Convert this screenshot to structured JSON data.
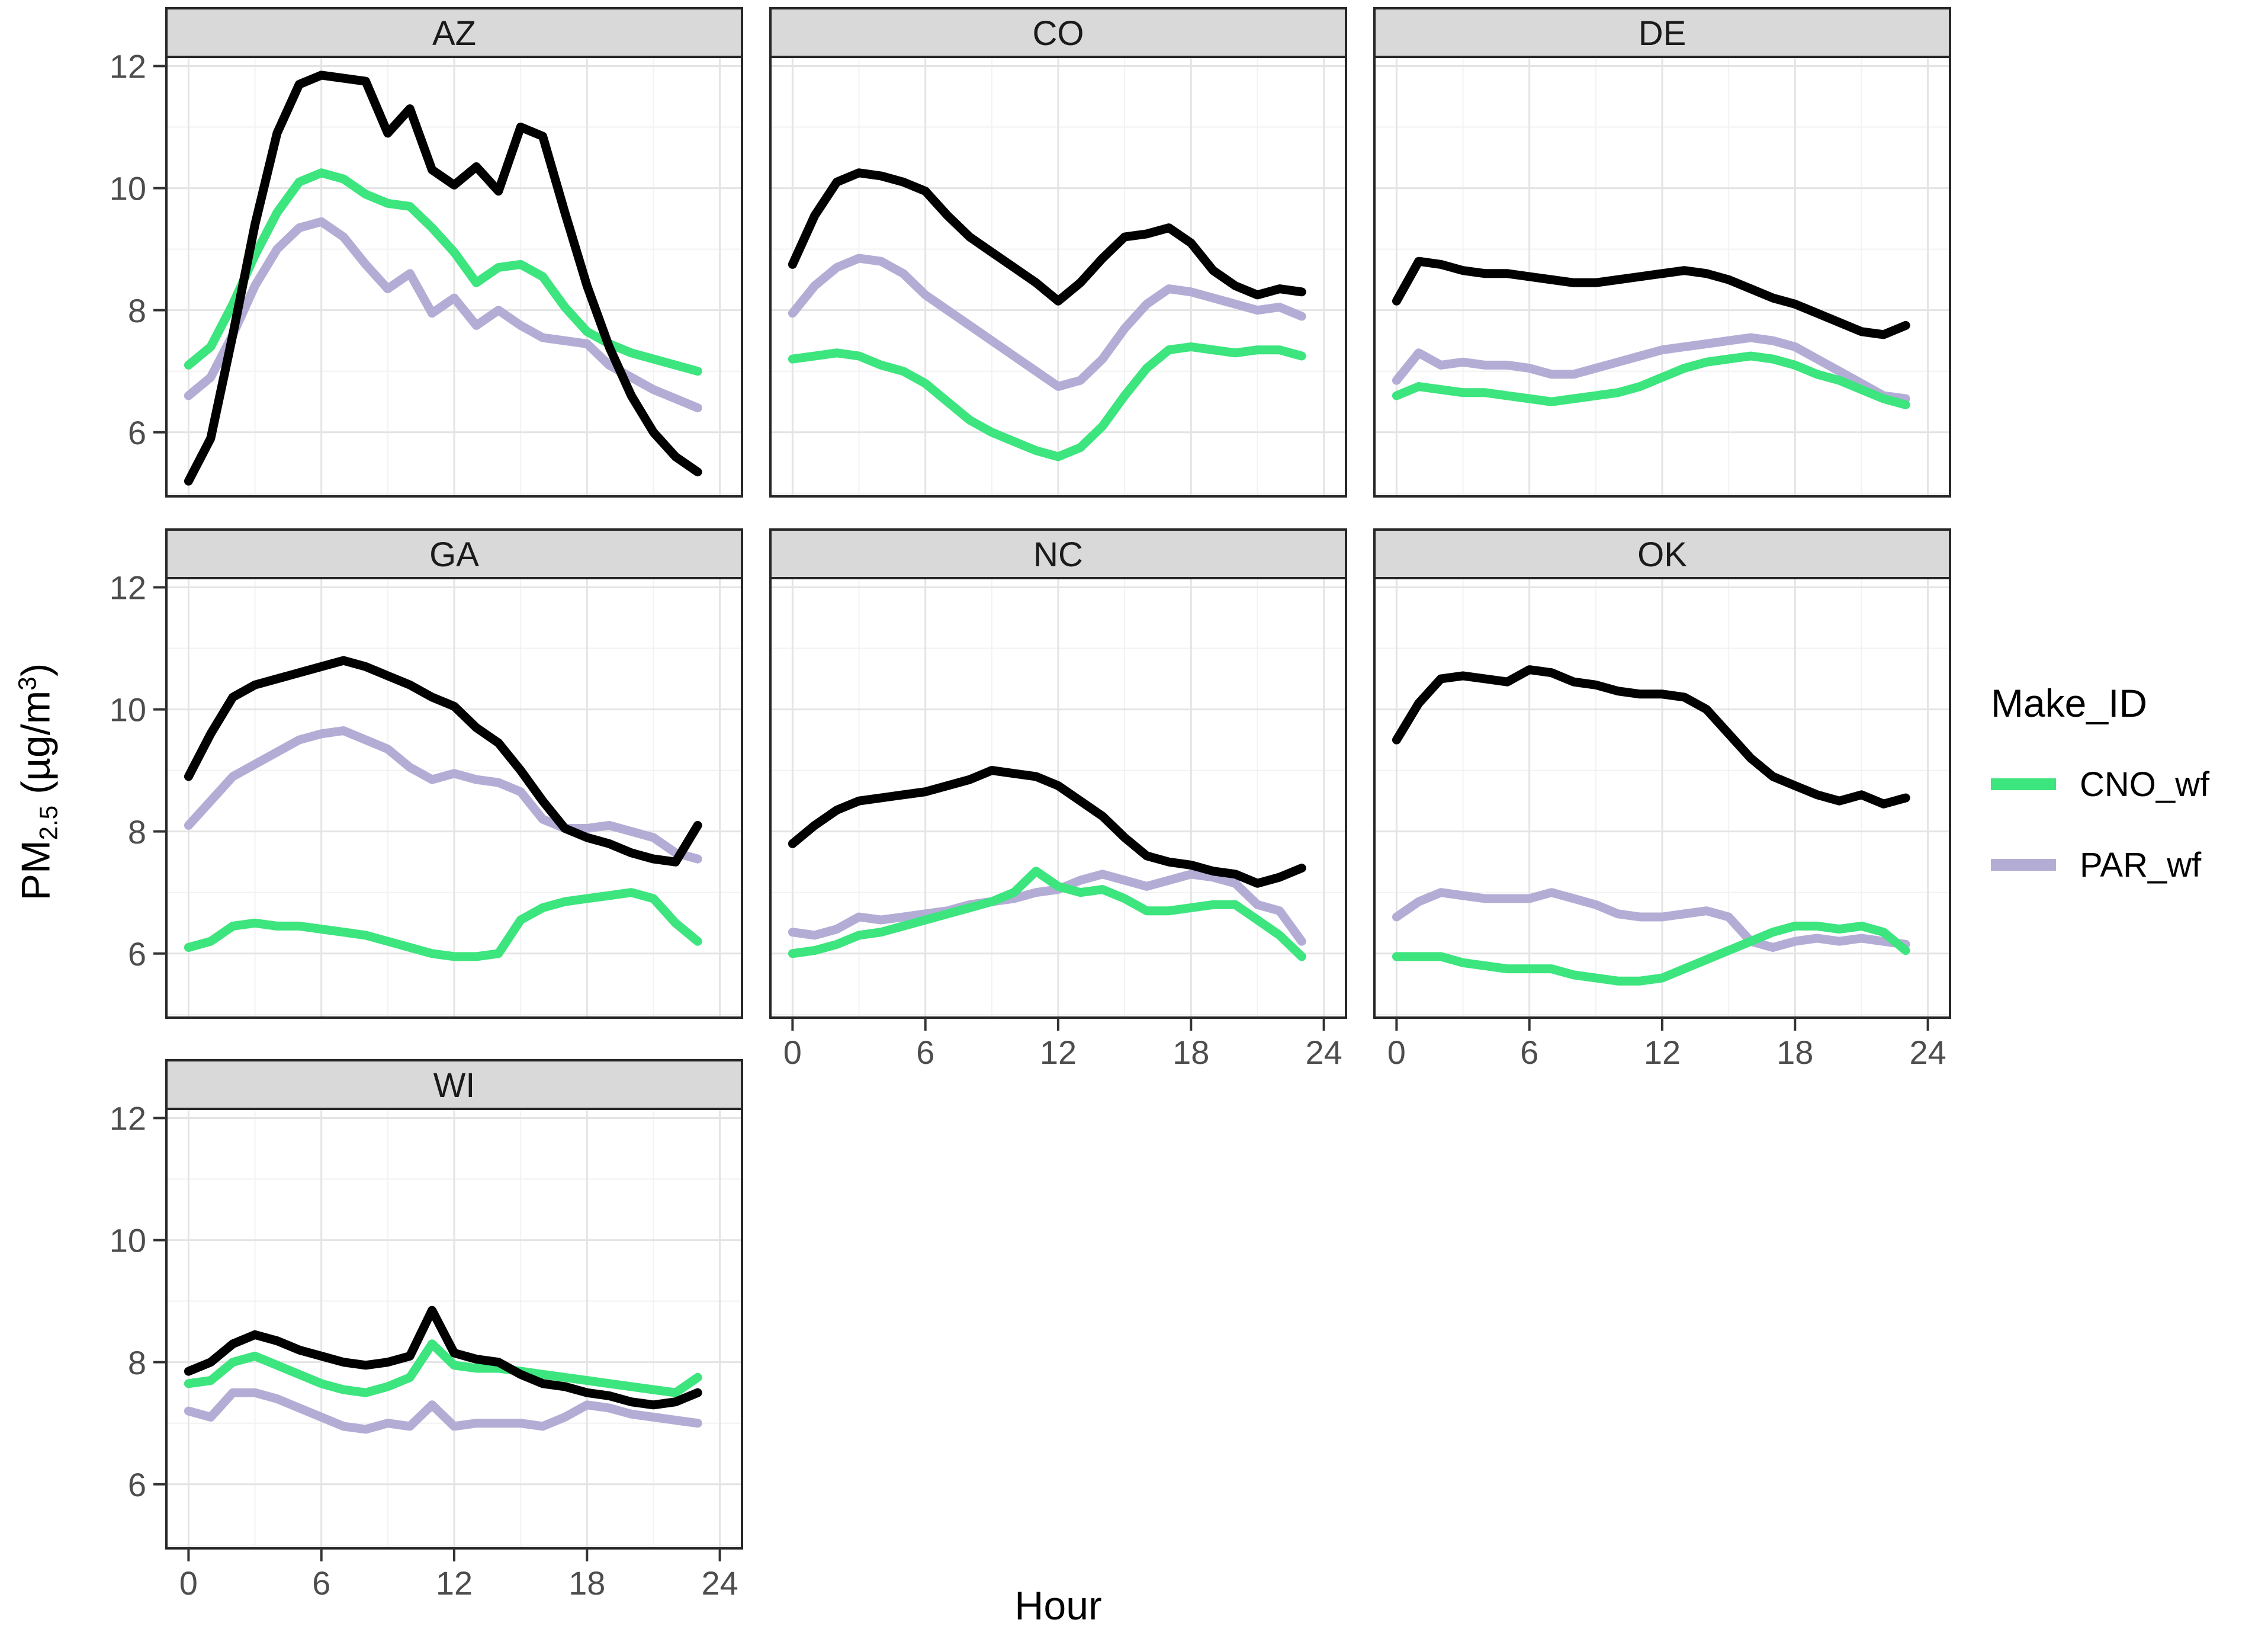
{
  "chart_data": {
    "type": "line",
    "title": "",
    "xlabel": "Hour",
    "ylabel_text": "PM2.5 (µg/m3)",
    "ylabel_parts": {
      "pre": "PM",
      "sub": "2.5",
      "mid": " (µg/m",
      "sup": "3",
      "post": ")"
    },
    "x_ticks": [
      0,
      6,
      12,
      18,
      24
    ],
    "x_minor_ticks": [
      3,
      9,
      15,
      21
    ],
    "y_ticks": [
      6,
      8,
      10,
      12
    ],
    "y_minor_ticks": [
      5,
      7,
      9,
      11
    ],
    "xlim": [
      -1,
      25
    ],
    "ylim": [
      4.95,
      12.15
    ],
    "grid": "major and minor, light gray on white panel",
    "hours": [
      0,
      1,
      2,
      3,
      4,
      5,
      6,
      7,
      8,
      9,
      10,
      11,
      12,
      13,
      14,
      15,
      16,
      17,
      18,
      19,
      20,
      21,
      22,
      23
    ],
    "legend": {
      "title": "Make_ID",
      "position": "right",
      "entries": [
        {
          "label": "CNO_wf",
          "color": "#3CE57D"
        },
        {
          "label": "PAR_wf",
          "color": "#B3ADD6"
        }
      ],
      "note": "thick black series appears in panels without a legend entry"
    },
    "series_colors": {
      "black": "#000000",
      "CNO_wf": "#3CE57D",
      "PAR_wf": "#B3ADD6"
    },
    "draw_order": [
      "PAR_wf",
      "CNO_wf",
      "black"
    ],
    "panels": [
      {
        "label": "AZ",
        "grid": {
          "row": 0,
          "col": 0
        },
        "y_axis": true,
        "x_axis": false,
        "series": {
          "black": [
            5.2,
            5.9,
            7.6,
            9.4,
            10.9,
            11.7,
            11.85,
            11.8,
            11.75,
            10.9,
            11.3,
            10.3,
            10.05,
            10.35,
            9.95,
            11.0,
            10.85,
            9.6,
            8.4,
            7.4,
            6.6,
            6.0,
            5.6,
            5.35
          ],
          "CNO_wf": [
            7.1,
            7.4,
            8.1,
            8.9,
            9.6,
            10.1,
            10.25,
            10.15,
            9.9,
            9.75,
            9.7,
            9.35,
            8.95,
            8.45,
            8.7,
            8.75,
            8.55,
            8.05,
            7.65,
            7.45,
            7.3,
            7.2,
            7.1,
            7.0
          ],
          "PAR_wf": [
            6.6,
            6.9,
            7.6,
            8.4,
            9.0,
            9.35,
            9.45,
            9.2,
            8.75,
            8.35,
            8.6,
            7.95,
            8.2,
            7.75,
            8.0,
            7.75,
            7.55,
            7.5,
            7.45,
            7.1,
            6.9,
            6.7,
            6.55,
            6.4
          ]
        }
      },
      {
        "label": "CO",
        "grid": {
          "row": 0,
          "col": 1
        },
        "y_axis": false,
        "x_axis": false,
        "series": {
          "black": [
            8.75,
            9.55,
            10.1,
            10.25,
            10.2,
            10.1,
            9.95,
            9.55,
            9.2,
            8.95,
            8.7,
            8.45,
            8.15,
            8.45,
            8.85,
            9.2,
            9.25,
            9.35,
            9.1,
            8.65,
            8.4,
            8.25,
            8.35,
            8.3
          ],
          "CNO_wf": [
            7.2,
            7.25,
            7.3,
            7.25,
            7.1,
            7.0,
            6.8,
            6.5,
            6.2,
            6.0,
            5.85,
            5.7,
            5.6,
            5.75,
            6.1,
            6.6,
            7.05,
            7.35,
            7.4,
            7.35,
            7.3,
            7.35,
            7.35,
            7.25
          ],
          "PAR_wf": [
            7.95,
            8.4,
            8.7,
            8.85,
            8.8,
            8.6,
            8.25,
            8.0,
            7.75,
            7.5,
            7.25,
            7.0,
            6.75,
            6.85,
            7.2,
            7.7,
            8.1,
            8.35,
            8.3,
            8.2,
            8.1,
            8.0,
            8.05,
            7.9
          ]
        }
      },
      {
        "label": "DE",
        "grid": {
          "row": 0,
          "col": 2
        },
        "y_axis": false,
        "x_axis": false,
        "series": {
          "black": [
            8.15,
            8.8,
            8.75,
            8.65,
            8.6,
            8.6,
            8.55,
            8.5,
            8.45,
            8.45,
            8.5,
            8.55,
            8.6,
            8.65,
            8.6,
            8.5,
            8.35,
            8.2,
            8.1,
            7.95,
            7.8,
            7.65,
            7.6,
            7.75
          ],
          "CNO_wf": [
            6.6,
            6.75,
            6.7,
            6.65,
            6.65,
            6.6,
            6.55,
            6.5,
            6.55,
            6.6,
            6.65,
            6.75,
            6.9,
            7.05,
            7.15,
            7.2,
            7.25,
            7.2,
            7.1,
            6.95,
            6.85,
            6.7,
            6.55,
            6.45
          ],
          "PAR_wf": [
            6.85,
            7.3,
            7.1,
            7.15,
            7.1,
            7.1,
            7.05,
            6.95,
            6.95,
            7.05,
            7.15,
            7.25,
            7.35,
            7.4,
            7.45,
            7.5,
            7.55,
            7.5,
            7.4,
            7.2,
            7.0,
            6.8,
            6.6,
            6.55
          ]
        }
      },
      {
        "label": "GA",
        "grid": {
          "row": 1,
          "col": 0
        },
        "y_axis": true,
        "x_axis": false,
        "series": {
          "black": [
            8.9,
            9.6,
            10.2,
            10.4,
            10.5,
            10.6,
            10.7,
            10.8,
            10.7,
            10.55,
            10.4,
            10.2,
            10.05,
            9.7,
            9.45,
            9.0,
            8.5,
            8.05,
            7.9,
            7.8,
            7.65,
            7.55,
            7.5,
            8.1
          ],
          "CNO_wf": [
            6.1,
            6.2,
            6.45,
            6.5,
            6.45,
            6.45,
            6.4,
            6.35,
            6.3,
            6.2,
            6.1,
            6.0,
            5.95,
            5.95,
            6.0,
            6.55,
            6.75,
            6.85,
            6.9,
            6.95,
            7.0,
            6.9,
            6.5,
            6.2
          ],
          "PAR_wf": [
            8.1,
            8.5,
            8.9,
            9.1,
            9.3,
            9.5,
            9.6,
            9.65,
            9.5,
            9.35,
            9.05,
            8.85,
            8.95,
            8.85,
            8.8,
            8.65,
            8.2,
            8.05,
            8.05,
            8.1,
            8.0,
            7.9,
            7.65,
            7.55
          ]
        }
      },
      {
        "label": "NC",
        "grid": {
          "row": 1,
          "col": 1
        },
        "y_axis": false,
        "x_axis": true,
        "series": {
          "black": [
            7.8,
            8.1,
            8.35,
            8.5,
            8.55,
            8.6,
            8.65,
            8.75,
            8.85,
            9.0,
            8.95,
            8.9,
            8.75,
            8.5,
            8.25,
            7.9,
            7.6,
            7.5,
            7.45,
            7.35,
            7.3,
            7.15,
            7.25,
            7.4
          ],
          "CNO_wf": [
            6.0,
            6.05,
            6.15,
            6.3,
            6.35,
            6.45,
            6.55,
            6.65,
            6.75,
            6.85,
            7.0,
            7.35,
            7.1,
            7.0,
            7.05,
            6.9,
            6.7,
            6.7,
            6.75,
            6.8,
            6.8,
            6.55,
            6.3,
            5.95
          ],
          "PAR_wf": [
            6.35,
            6.3,
            6.4,
            6.6,
            6.55,
            6.6,
            6.65,
            6.7,
            6.8,
            6.85,
            6.9,
            7.0,
            7.05,
            7.2,
            7.3,
            7.2,
            7.1,
            7.2,
            7.3,
            7.25,
            7.15,
            6.8,
            6.7,
            6.2
          ]
        }
      },
      {
        "label": "OK",
        "grid": {
          "row": 1,
          "col": 2
        },
        "y_axis": false,
        "x_axis": true,
        "series": {
          "black": [
            9.5,
            10.1,
            10.5,
            10.55,
            10.5,
            10.45,
            10.65,
            10.6,
            10.45,
            10.4,
            10.3,
            10.25,
            10.25,
            10.2,
            10.0,
            9.6,
            9.2,
            8.9,
            8.75,
            8.6,
            8.5,
            8.6,
            8.45,
            8.55
          ],
          "CNO_wf": [
            5.95,
            5.95,
            5.95,
            5.85,
            5.8,
            5.75,
            5.75,
            5.75,
            5.65,
            5.6,
            5.55,
            5.55,
            5.6,
            5.75,
            5.9,
            6.05,
            6.2,
            6.35,
            6.45,
            6.45,
            6.4,
            6.45,
            6.35,
            6.05
          ],
          "PAR_wf": [
            6.6,
            6.85,
            7.0,
            6.95,
            6.9,
            6.9,
            6.9,
            7.0,
            6.9,
            6.8,
            6.65,
            6.6,
            6.6,
            6.65,
            6.7,
            6.6,
            6.2,
            6.1,
            6.2,
            6.25,
            6.2,
            6.25,
            6.2,
            6.15
          ]
        }
      },
      {
        "label": "WI",
        "grid": {
          "row": 2,
          "col": 0
        },
        "y_axis": true,
        "x_axis": true,
        "series": {
          "black": [
            7.85,
            8.0,
            8.3,
            8.45,
            8.35,
            8.2,
            8.1,
            8.0,
            7.95,
            8.0,
            8.1,
            8.85,
            8.15,
            8.05,
            8.0,
            7.8,
            7.65,
            7.6,
            7.5,
            7.45,
            7.35,
            7.3,
            7.35,
            7.5
          ],
          "CNO_wf": [
            7.65,
            7.7,
            8.0,
            8.1,
            7.95,
            7.8,
            7.65,
            7.55,
            7.5,
            7.6,
            7.75,
            8.3,
            7.95,
            7.9,
            7.9,
            7.85,
            7.8,
            7.75,
            7.7,
            7.65,
            7.6,
            7.55,
            7.5,
            7.75
          ],
          "PAR_wf": [
            7.2,
            7.1,
            7.5,
            7.5,
            7.4,
            7.25,
            7.1,
            6.95,
            6.9,
            7.0,
            6.95,
            7.3,
            6.95,
            7.0,
            7.0,
            7.0,
            6.95,
            7.1,
            7.3,
            7.25,
            7.15,
            7.1,
            7.05,
            7.0
          ]
        }
      }
    ]
  },
  "colors": {
    "strip_fill": "#D9D9D9",
    "strip_border": "#262626",
    "panel_border": "#262626",
    "panel_bg": "#FFFFFF",
    "grid_major": "#E4E4E4",
    "grid_minor": "#F2F2F2",
    "tick_label": "#4D4D4D",
    "axis_tick": "#333333"
  }
}
